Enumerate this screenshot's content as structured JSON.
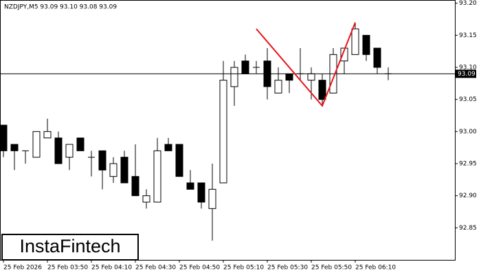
{
  "chart_data": {
    "type": "candlestick",
    "title": "NZDJPY,M5  93.09 93.10 93.08 93.09",
    "watermark": "InstaFintech",
    "categories": [
      "25 Feb 2026",
      null,
      null,
      null,
      "25 Feb 03:50",
      null,
      null,
      null,
      "25 Feb 04:10",
      null,
      null,
      null,
      "25 Feb 04:30",
      null,
      null,
      null,
      "25 Feb 04:50",
      null,
      null,
      null,
      "25 Feb 05:10",
      null,
      null,
      null,
      "25 Feb 05:30",
      null,
      null,
      null,
      "25 Feb 05:50",
      null,
      null,
      null,
      "25 Feb 06:10",
      null,
      null,
      null
    ],
    "open": [
      93.01,
      92.98,
      92.97,
      92.96,
      92.99,
      92.99,
      92.96,
      92.99,
      92.96,
      92.97,
      92.93,
      92.96,
      92.93,
      92.89,
      92.89,
      92.98,
      92.98,
      92.92,
      92.92,
      92.88,
      92.92,
      93.07,
      93.11,
      93.1,
      93.11,
      93.06,
      93.09,
      93.09,
      93.08,
      93.08,
      93.06,
      93.11,
      93.12,
      93.15,
      93.13,
      93.09
    ],
    "high": [
      93.01,
      92.98,
      92.97,
      93.0,
      93.02,
      93.0,
      92.98,
      92.99,
      92.97,
      92.97,
      92.96,
      92.97,
      92.98,
      92.91,
      92.99,
      92.99,
      92.98,
      92.94,
      92.92,
      92.95,
      93.11,
      93.11,
      93.12,
      93.11,
      93.13,
      93.1,
      93.09,
      93.13,
      93.1,
      93.09,
      93.13,
      93.13,
      93.17,
      93.15,
      93.13,
      93.1
    ],
    "low": [
      92.96,
      92.94,
      92.95,
      92.96,
      92.99,
      92.95,
      92.94,
      92.97,
      92.93,
      92.91,
      92.92,
      92.92,
      92.9,
      92.88,
      92.89,
      92.97,
      92.93,
      92.91,
      92.88,
      92.83,
      92.92,
      93.04,
      93.09,
      93.09,
      93.05,
      93.06,
      93.06,
      93.08,
      93.05,
      93.04,
      93.06,
      93.09,
      93.12,
      93.11,
      93.09,
      93.08
    ],
    "close": [
      92.97,
      92.97,
      92.97,
      93.0,
      93.0,
      92.95,
      92.98,
      92.97,
      92.96,
      92.94,
      92.95,
      92.92,
      92.9,
      92.9,
      92.97,
      92.97,
      92.93,
      92.91,
      92.89,
      92.91,
      93.08,
      93.1,
      93.09,
      93.1,
      93.07,
      93.08,
      93.08,
      93.09,
      93.09,
      93.05,
      93.12,
      93.13,
      93.16,
      93.12,
      93.1,
      93.09
    ],
    "up_color": "#ffffff",
    "down_color": "#000000",
    "last_price": 93.09,
    "pattern": {
      "color": "#e8141b",
      "indices": [
        23,
        29,
        32
      ],
      "values": [
        93.16,
        93.04,
        93.17
      ]
    },
    "ylim": [
      92.8,
      93.205
    ],
    "yticks": [
      {
        "value": 92.85,
        "label": "92.85"
      },
      {
        "value": 92.9,
        "label": "92.90"
      },
      92.95,
      {
        "value": 93.0,
        "label": "93.00"
      },
      93.05,
      {
        "value": 93.1,
        "label": "93.10"
      },
      93.15,
      {
        "value": 93.2,
        "label": "93.20"
      }
    ]
  }
}
